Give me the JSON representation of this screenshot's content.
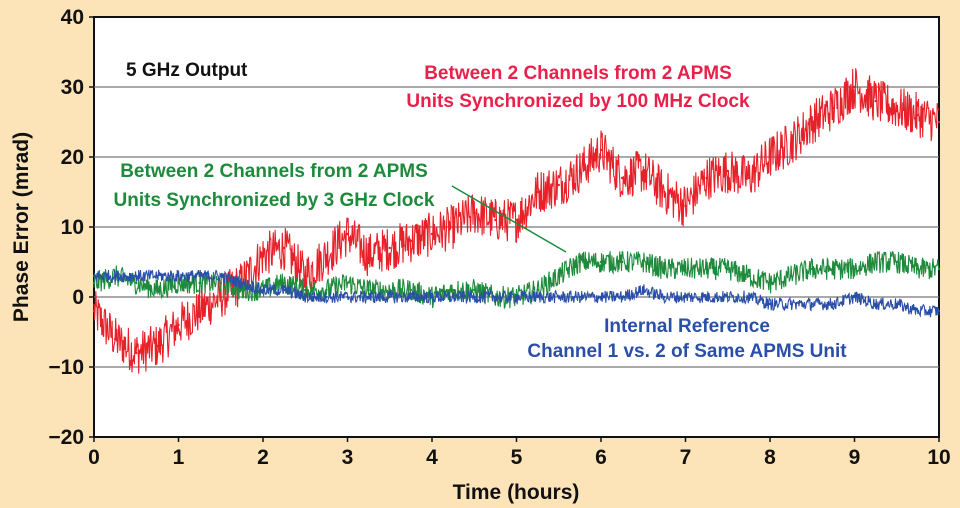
{
  "chart_data": {
    "type": "line",
    "title": "",
    "xlabel": "Time (hours)",
    "ylabel": "Phase Error (mrad)",
    "xlim": [
      0,
      10
    ],
    "ylim": [
      -20,
      40
    ],
    "x_ticks": [
      "0",
      "1",
      "2",
      "3",
      "4",
      "5",
      "6",
      "7",
      "8",
      "9",
      "10"
    ],
    "y_ticks": [
      "40",
      "30",
      "20",
      "10",
      "0",
      "−10",
      "−20"
    ],
    "grid": "horizontal",
    "x": [
      0,
      0.25,
      0.5,
      0.75,
      1,
      1.25,
      1.5,
      1.75,
      2,
      2.25,
      2.5,
      2.75,
      3,
      3.25,
      3.5,
      3.75,
      4,
      4.25,
      4.5,
      4.75,
      5,
      5.25,
      5.5,
      5.75,
      6,
      6.25,
      6.5,
      6.75,
      7,
      7.25,
      7.5,
      7.75,
      8,
      8.25,
      8.5,
      8.75,
      9,
      9.25,
      9.5,
      9.75,
      10
    ],
    "series": [
      {
        "color": "#e8202a",
        "values": [
          -2,
          -6,
          -8,
          -7,
          -4,
          -2,
          0,
          2,
          6,
          7,
          3,
          6,
          9,
          6,
          7,
          8,
          9,
          10,
          12,
          11,
          11,
          15,
          16,
          18,
          21,
          17,
          18,
          15,
          13,
          17,
          18,
          17,
          20,
          22,
          25,
          27,
          30,
          28,
          27,
          26,
          25
        ]
      },
      {
        "color": "#1e8a3c",
        "values": [
          2,
          3,
          2,
          1,
          2,
          2,
          2,
          1,
          1,
          2,
          1,
          1,
          2,
          1,
          1,
          1,
          0,
          1,
          1,
          0,
          0,
          1,
          3,
          5,
          5,
          5,
          5,
          4,
          4,
          4,
          4,
          3,
          2,
          3,
          4,
          4,
          4,
          5,
          5,
          4,
          4
        ]
      },
      {
        "color": "#2a4fa8",
        "values": [
          3,
          3,
          3,
          3,
          3,
          3,
          3,
          2,
          1,
          1,
          0,
          0,
          0,
          0,
          0,
          0,
          0,
          0,
          0,
          0,
          0,
          0,
          0,
          0,
          0,
          0,
          1,
          0,
          0,
          0,
          0,
          0,
          -1,
          -1,
          -1,
          -1,
          0,
          -1,
          -1,
          -2,
          -2
        ]
      }
    ],
    "annotations": {
      "output": "5 GHz Output",
      "red_line1": "Between 2 Channels from 2 APMS",
      "red_line2": "Units Synchronized by 100 MHz Clock",
      "green_line1": "Between 2 Channels from 2 APMS",
      "green_line2": "Units Synchronized by 3 GHz Clock",
      "blue_line1": "Internal Reference",
      "blue_line2": "Channel 1 vs. 2 of Same APMS Unit"
    },
    "colors": {
      "red": "#e8202a",
      "green": "#1e8a3c",
      "blue": "#2a4fa8",
      "background": "#fde4b8"
    }
  }
}
